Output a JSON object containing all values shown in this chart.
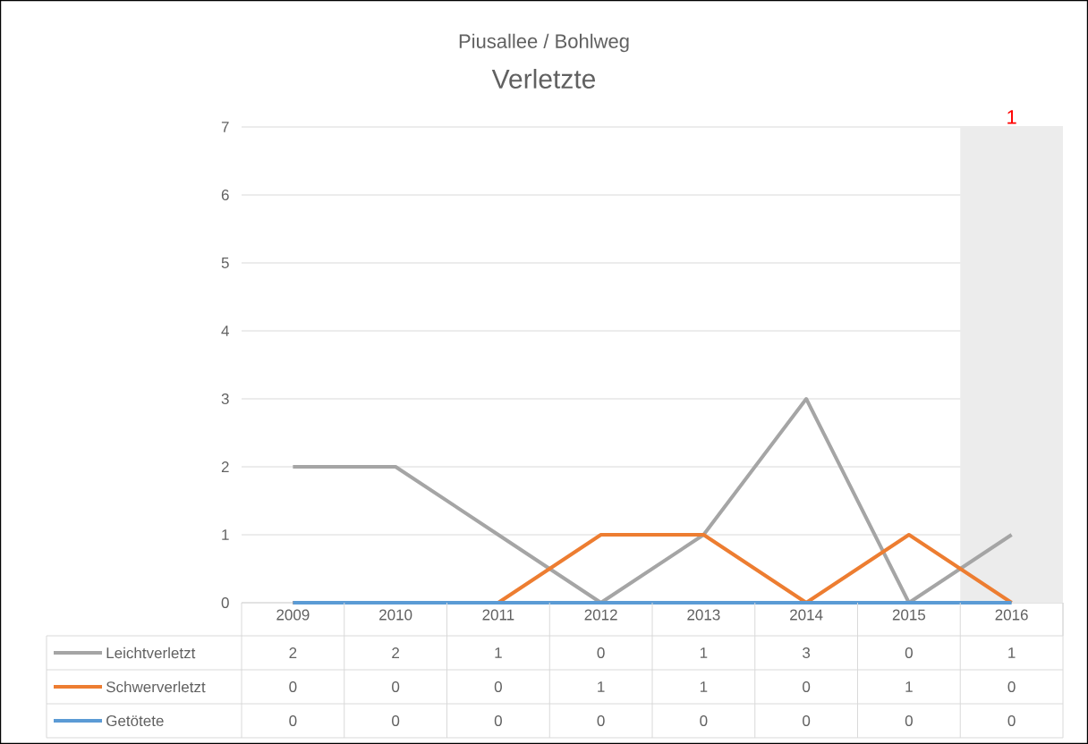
{
  "chart_data": {
    "type": "line",
    "title": "Piusallee / Bohlweg",
    "subtitle": "Verletzte",
    "categories": [
      "2009",
      "2010",
      "2011",
      "2012",
      "2013",
      "2014",
      "2015",
      "2016"
    ],
    "series": [
      {
        "name": "Leichtverletzt",
        "color": "#a5a5a5",
        "values": [
          2,
          2,
          1,
          0,
          1,
          3,
          0,
          1
        ]
      },
      {
        "name": "Schwerverletzt",
        "color": "#ed7d31",
        "values": [
          0,
          0,
          0,
          1,
          1,
          0,
          1,
          0
        ]
      },
      {
        "name": "Getötete",
        "color": "#5b9bd5",
        "values": [
          0,
          0,
          0,
          0,
          0,
          0,
          0,
          0
        ]
      }
    ],
    "ylim": [
      0,
      7
    ],
    "yticks": [
      0,
      1,
      2,
      3,
      4,
      5,
      6,
      7
    ],
    "grid": "y",
    "legend": "bottom",
    "data_labels": true,
    "marker": "none",
    "line_style": "solid",
    "bands": [
      {
        "axis": "x",
        "from": "2016",
        "to": "2016",
        "label": "1",
        "color": "#ececec"
      }
    ]
  }
}
